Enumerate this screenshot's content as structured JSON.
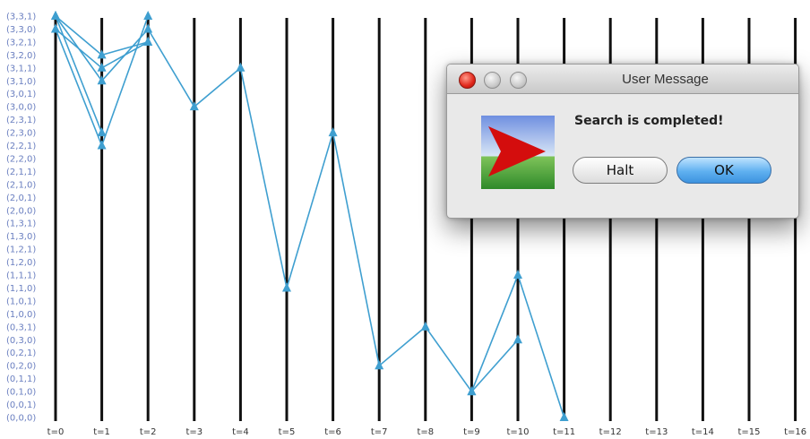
{
  "chart_data": {
    "type": "line",
    "x_labels": [
      "t=0",
      "t=1",
      "t=2",
      "t=3",
      "t=4",
      "t=5",
      "t=6",
      "t=7",
      "t=8",
      "t=9",
      "t=10",
      "t=11",
      "t=12",
      "t=13",
      "t=14",
      "t=15",
      "t=16"
    ],
    "y_labels": [
      "(0,0,0)",
      "(0,0,1)",
      "(0,1,0)",
      "(0,1,1)",
      "(0,2,0)",
      "(0,2,1)",
      "(0,3,0)",
      "(0,3,1)",
      "(1,0,0)",
      "(1,0,1)",
      "(1,1,0)",
      "(1,1,1)",
      "(1,2,0)",
      "(1,2,1)",
      "(1,3,0)",
      "(1,3,1)",
      "(2,0,0)",
      "(2,0,1)",
      "(2,1,0)",
      "(2,1,1)",
      "(2,2,0)",
      "(2,2,1)",
      "(2,3,0)",
      "(2,3,1)",
      "(3,0,0)",
      "(3,0,1)",
      "(3,1,0)",
      "(3,1,1)",
      "(3,2,0)",
      "(3,2,1)",
      "(3,3,0)",
      "(3,3,1)"
    ],
    "series": [
      {
        "values": [
          31,
          26,
          30,
          24,
          27,
          10,
          22,
          4,
          7,
          2,
          11,
          0
        ]
      },
      {
        "values": [
          31,
          28,
          29
        ]
      },
      {
        "values": [
          30,
          21,
          31
        ]
      },
      {
        "values": [
          30,
          27,
          29
        ]
      },
      {
        "values": [
          31,
          22
        ]
      },
      {
        "values": [
          2,
          6
        ]
      }
    ],
    "color": "#3f9fd0"
  },
  "dialog": {
    "title": "User Message",
    "message": "Search is completed!",
    "halt_label": "Halt",
    "ok_label": "OK"
  }
}
